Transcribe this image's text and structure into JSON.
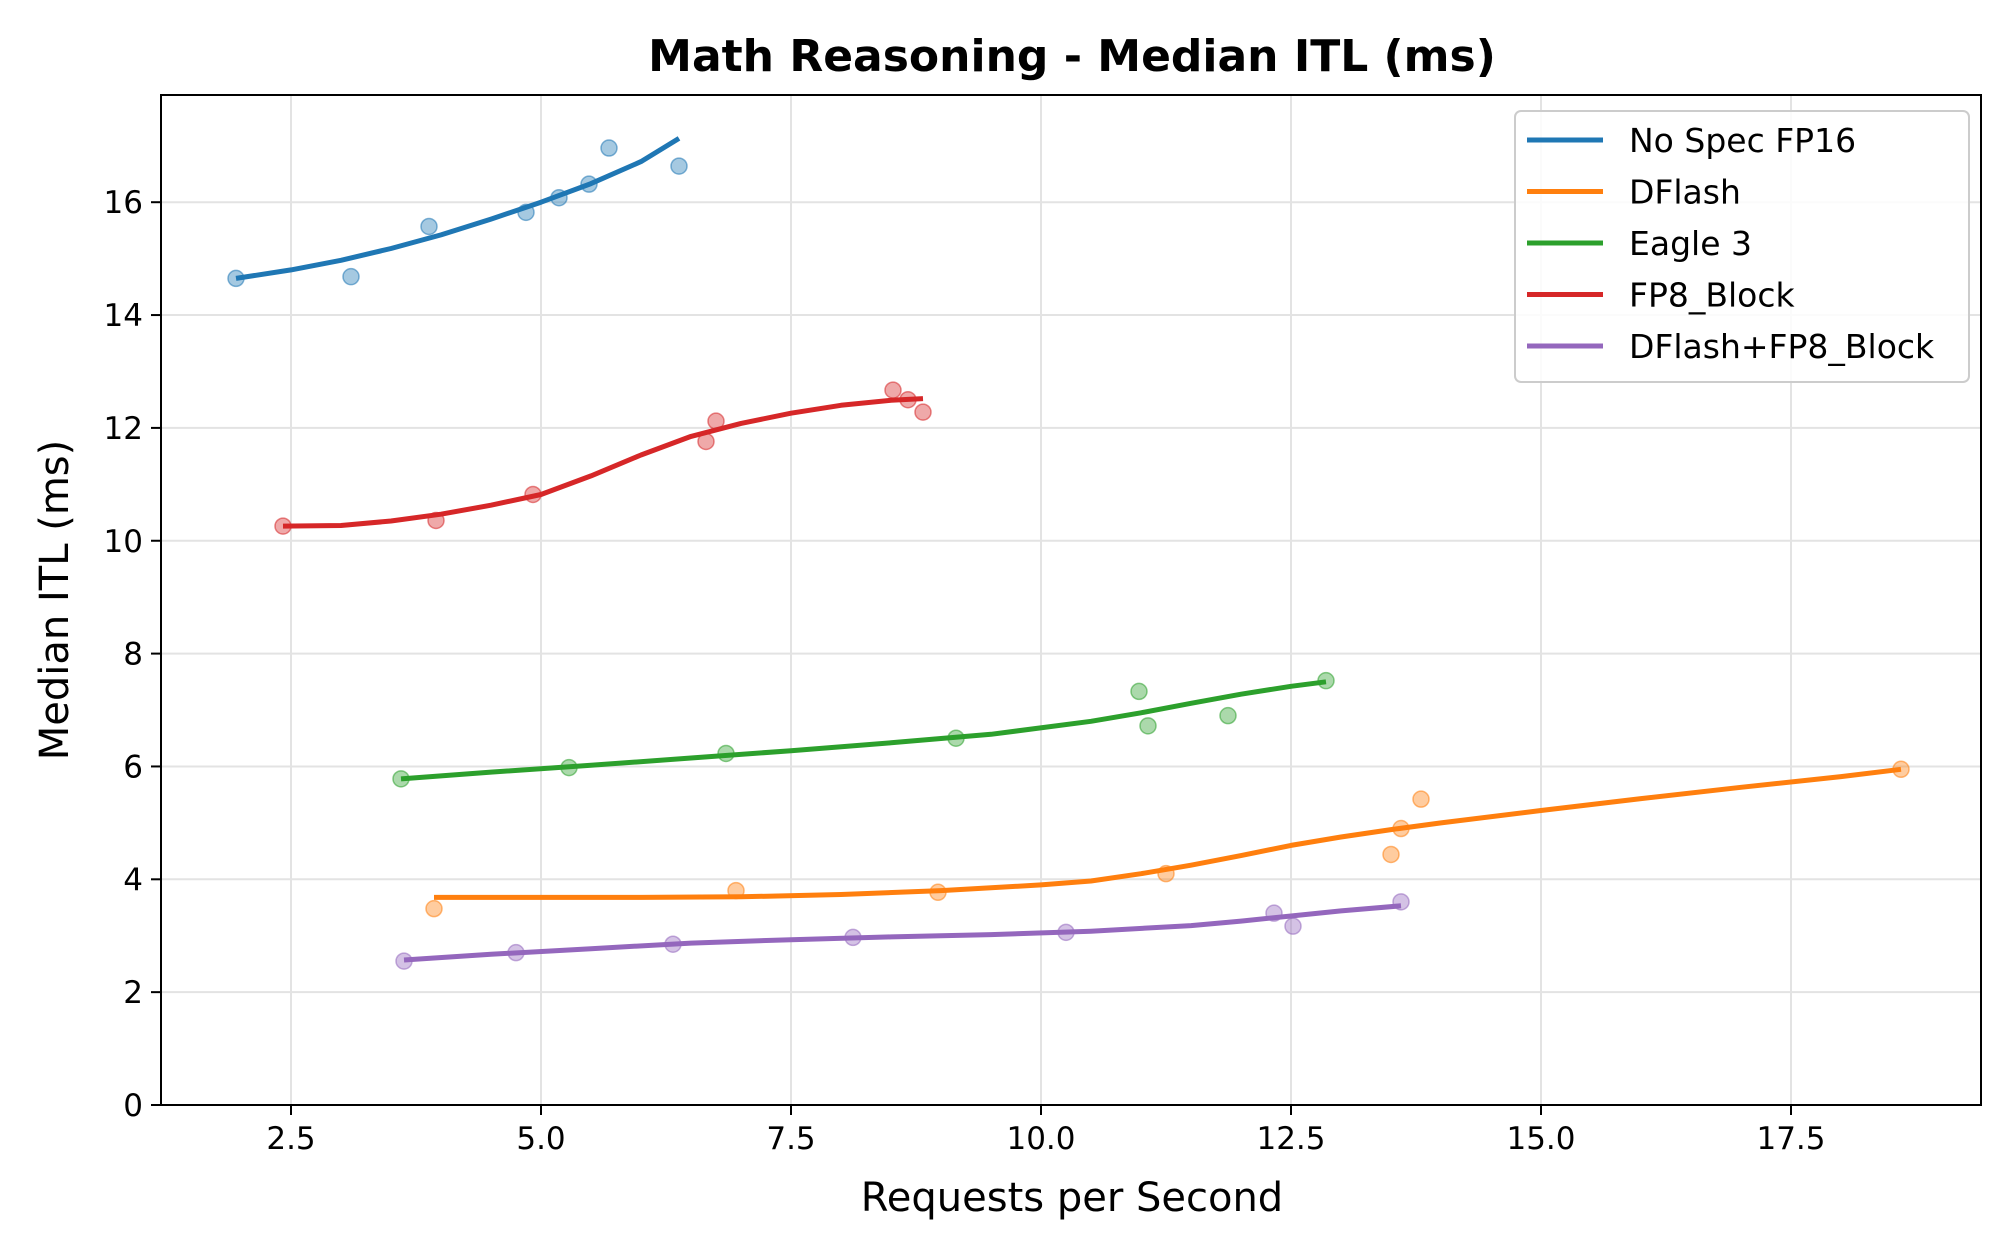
{
  "chart_data": {
    "type": "scatter",
    "title": "Math Reasoning - Median ITL (ms)",
    "xlabel": "Requests per Second",
    "ylabel": "Median ITL (ms)",
    "xlim": [
      1.2,
      19.4
    ],
    "ylim": [
      0,
      17.9
    ],
    "xticks": [
      2.5,
      5.0,
      7.5,
      10.0,
      12.5,
      15.0,
      17.5
    ],
    "xtick_labels": [
      "2.5",
      "5.0",
      "7.5",
      "10.0",
      "12.5",
      "15.0",
      "17.5"
    ],
    "yticks": [
      0,
      2,
      4,
      6,
      8,
      10,
      12,
      14,
      16
    ],
    "ytick_labels": [
      "0",
      "2",
      "4",
      "6",
      "8",
      "10",
      "12",
      "14",
      "16"
    ],
    "grid": true,
    "legend_position": "top-right",
    "series": [
      {
        "name": "No Spec FP16",
        "color": "#1f77b4",
        "points": [
          [
            1.95,
            14.65
          ],
          [
            3.1,
            14.68
          ],
          [
            3.88,
            15.57
          ],
          [
            4.85,
            15.82
          ],
          [
            5.18,
            16.08
          ],
          [
            5.48,
            16.32
          ],
          [
            5.68,
            16.96
          ],
          [
            6.38,
            16.64
          ]
        ],
        "trend": [
          [
            1.95,
            14.65
          ],
          [
            2.5,
            14.8
          ],
          [
            3.0,
            14.97
          ],
          [
            3.5,
            15.18
          ],
          [
            4.0,
            15.42
          ],
          [
            4.5,
            15.7
          ],
          [
            5.0,
            16.0
          ],
          [
            5.5,
            16.33
          ],
          [
            6.0,
            16.72
          ],
          [
            6.38,
            17.13
          ]
        ]
      },
      {
        "name": "DFlash",
        "color": "#ff7f0e",
        "points": [
          [
            3.93,
            3.48
          ],
          [
            6.95,
            3.8
          ],
          [
            8.97,
            3.77
          ],
          [
            11.25,
            4.1
          ],
          [
            13.5,
            4.44
          ],
          [
            13.6,
            4.9
          ],
          [
            13.8,
            5.42
          ],
          [
            18.6,
            5.95
          ]
        ],
        "trend": [
          [
            3.93,
            3.68
          ],
          [
            5.0,
            3.68
          ],
          [
            6.0,
            3.68
          ],
          [
            7.0,
            3.69
          ],
          [
            8.0,
            3.73
          ],
          [
            9.0,
            3.8
          ],
          [
            10.0,
            3.9
          ],
          [
            10.5,
            3.97
          ],
          [
            11.0,
            4.1
          ],
          [
            11.5,
            4.25
          ],
          [
            12.0,
            4.42
          ],
          [
            12.5,
            4.6
          ],
          [
            13.0,
            4.75
          ],
          [
            13.5,
            4.88
          ],
          [
            14.0,
            5.0
          ],
          [
            15.0,
            5.22
          ],
          [
            16.0,
            5.43
          ],
          [
            17.0,
            5.63
          ],
          [
            18.0,
            5.82
          ],
          [
            18.6,
            5.95
          ]
        ]
      },
      {
        "name": "Eagle 3",
        "color": "#2ca02c",
        "points": [
          [
            3.6,
            5.78
          ],
          [
            5.28,
            5.98
          ],
          [
            6.85,
            6.23
          ],
          [
            9.15,
            6.5
          ],
          [
            10.98,
            7.33
          ],
          [
            11.07,
            6.72
          ],
          [
            11.87,
            6.9
          ],
          [
            12.85,
            7.52
          ]
        ],
        "trend": [
          [
            3.6,
            5.78
          ],
          [
            4.5,
            5.9
          ],
          [
            5.5,
            6.02
          ],
          [
            6.5,
            6.15
          ],
          [
            7.5,
            6.28
          ],
          [
            8.5,
            6.42
          ],
          [
            9.5,
            6.57
          ],
          [
            10.5,
            6.8
          ],
          [
            11.0,
            6.95
          ],
          [
            11.5,
            7.12
          ],
          [
            12.0,
            7.28
          ],
          [
            12.5,
            7.42
          ],
          [
            12.85,
            7.5
          ]
        ]
      },
      {
        "name": "FP8_Block",
        "color": "#d62728",
        "points": [
          [
            2.42,
            10.26
          ],
          [
            3.95,
            10.36
          ],
          [
            4.92,
            10.82
          ],
          [
            6.65,
            11.76
          ],
          [
            6.75,
            12.12
          ],
          [
            8.52,
            12.67
          ],
          [
            8.67,
            12.5
          ],
          [
            8.82,
            12.28
          ]
        ],
        "trend": [
          [
            2.42,
            10.26
          ],
          [
            3.0,
            10.27
          ],
          [
            3.5,
            10.35
          ],
          [
            4.0,
            10.47
          ],
          [
            4.5,
            10.63
          ],
          [
            5.0,
            10.82
          ],
          [
            5.5,
            11.15
          ],
          [
            6.0,
            11.52
          ],
          [
            6.5,
            11.85
          ],
          [
            7.0,
            12.08
          ],
          [
            7.5,
            12.26
          ],
          [
            8.0,
            12.4
          ],
          [
            8.5,
            12.49
          ],
          [
            8.82,
            12.52
          ]
        ]
      },
      {
        "name": "DFlash+FP8_Block",
        "color": "#9467bd",
        "points": [
          [
            3.63,
            2.55
          ],
          [
            4.75,
            2.7
          ],
          [
            6.32,
            2.85
          ],
          [
            8.12,
            2.97
          ],
          [
            10.25,
            3.06
          ],
          [
            12.33,
            3.4
          ],
          [
            12.52,
            3.17
          ],
          [
            13.6,
            3.6
          ]
        ],
        "trend": [
          [
            3.63,
            2.57
          ],
          [
            4.5,
            2.67
          ],
          [
            5.5,
            2.77
          ],
          [
            6.5,
            2.87
          ],
          [
            7.5,
            2.93
          ],
          [
            8.5,
            2.98
          ],
          [
            9.5,
            3.02
          ],
          [
            10.5,
            3.08
          ],
          [
            11.5,
            3.18
          ],
          [
            12.0,
            3.26
          ],
          [
            12.5,
            3.35
          ],
          [
            13.0,
            3.44
          ],
          [
            13.6,
            3.53
          ]
        ]
      }
    ]
  }
}
